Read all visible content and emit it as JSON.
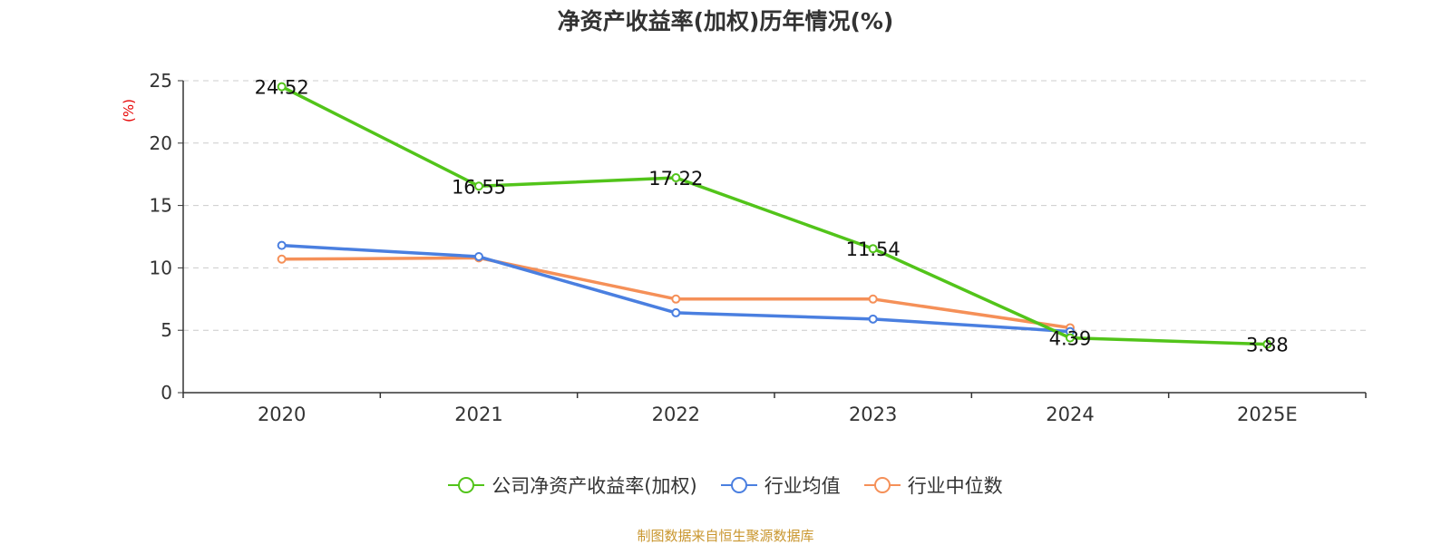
{
  "chart_data": {
    "type": "line",
    "title": "净资产收益率(加权)历年情况(%)",
    "ylabel": "(%)",
    "xlabel": "",
    "ylim": [
      0,
      25
    ],
    "yticks": [
      0,
      5,
      10,
      15,
      20,
      25
    ],
    "grid": true,
    "legend_position": "bottom",
    "categories": [
      "2020",
      "2021",
      "2022",
      "2023",
      "2024",
      "2025E"
    ],
    "series": [
      {
        "name": "公司净资产收益率(加权)",
        "color": "#52c41a",
        "values": [
          24.52,
          16.55,
          17.22,
          11.54,
          4.39,
          3.88
        ],
        "labels": [
          "24.52",
          "16.55",
          "17.22",
          "11.54",
          "4.39",
          "3.88"
        ]
      },
      {
        "name": "行业均值",
        "color": "#4a7fe0",
        "values": [
          11.8,
          10.9,
          6.4,
          5.9,
          4.9,
          null
        ]
      },
      {
        "name": "行业中位数",
        "color": "#f59058",
        "values": [
          10.7,
          10.8,
          7.5,
          7.5,
          5.2,
          null
        ]
      }
    ]
  },
  "source": {
    "text": "制图数据来自恒生聚源数据库",
    "color": "#c9962e"
  },
  "colors": {
    "ylabel": "#e60000",
    "axis": "#333333",
    "grid": "#cccccc"
  }
}
